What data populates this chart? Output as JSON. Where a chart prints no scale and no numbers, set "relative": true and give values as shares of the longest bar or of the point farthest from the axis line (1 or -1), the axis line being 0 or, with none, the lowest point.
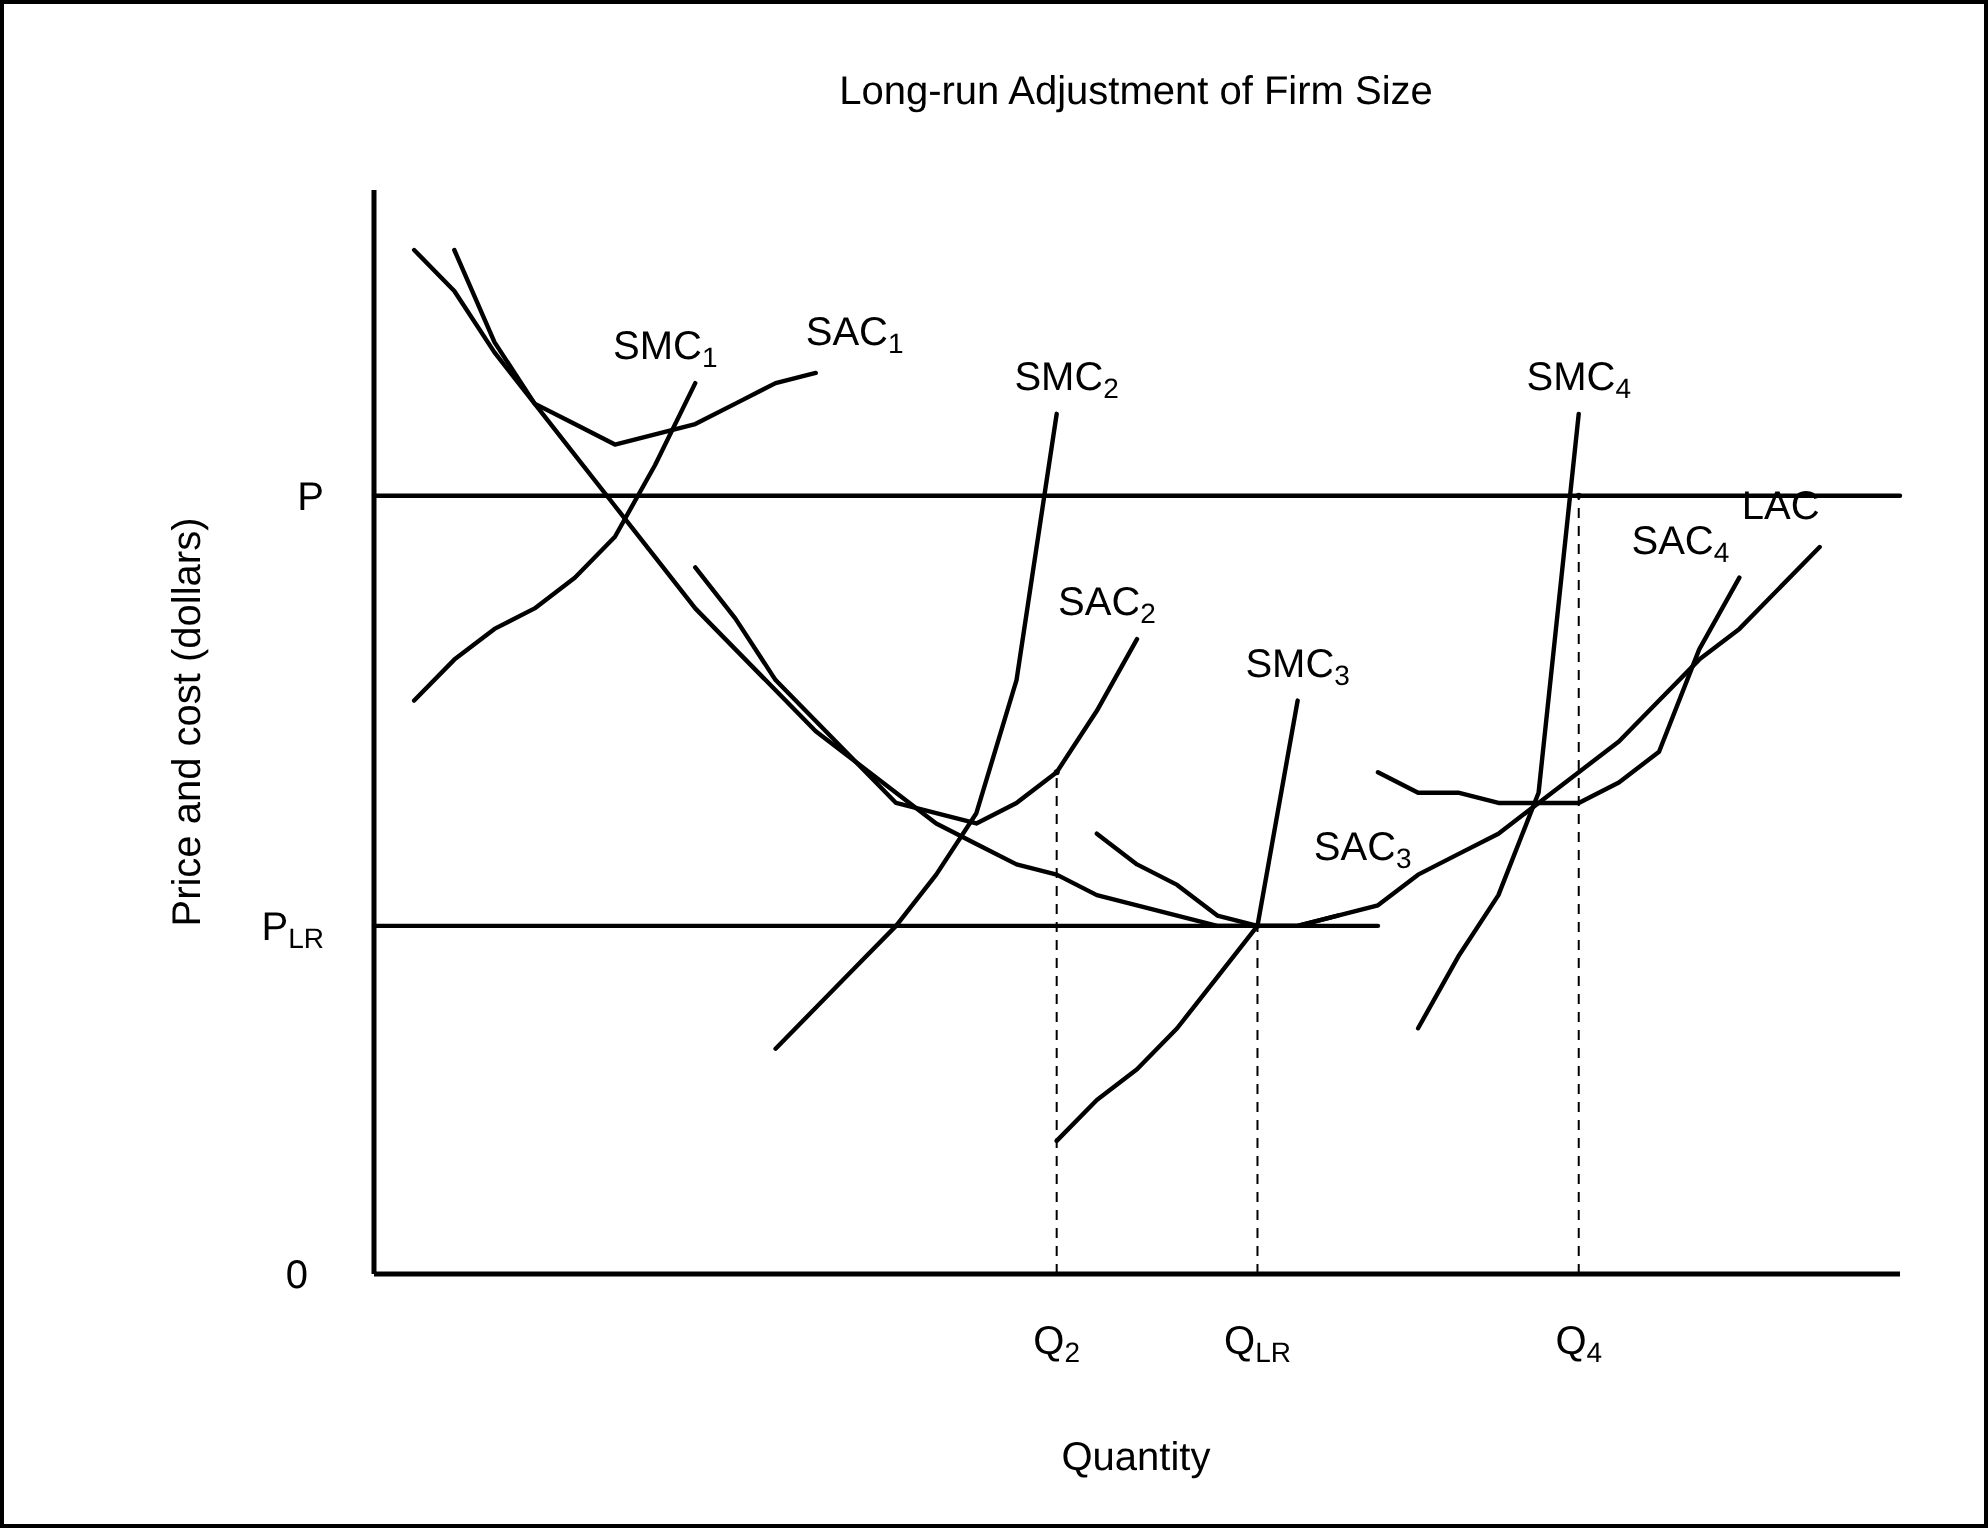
{
  "chart_data": {
    "type": "line",
    "title": "Long-run Adjustment of Firm Size",
    "xlabel": "Quantity",
    "ylabel": "Price and cost (dollars)",
    "relative": true,
    "legend": false,
    "categories": [
      null,
      null,
      null,
      null,
      null,
      null,
      null,
      null,
      null,
      null,
      null,
      null,
      null,
      null,
      null,
      null,
      null,
      "Q$_{2}$",
      null,
      null,
      null,
      null,
      "Q$_{LR}$",
      null,
      null,
      null,
      null,
      null,
      null,
      null,
      "Q$_{4}$",
      null,
      null,
      null,
      null,
      null,
      null,
      null,
      null
    ],
    "series": [
      {
        "name": "LAC",
        "color": "#000000",
        "values": [
          null,
          1.0,
          0.96,
          0.9,
          0.85,
          0.8,
          0.75,
          0.7,
          0.65,
          0.61,
          0.57,
          0.53,
          0.5,
          0.47,
          0.44,
          0.42,
          0.4,
          0.39,
          0.37,
          0.36,
          0.35,
          0.34,
          0.34,
          0.34,
          0.35,
          0.36,
          0.39,
          0.41,
          0.43,
          0.46,
          0.49,
          0.52,
          0.56,
          0.6,
          0.63,
          0.67,
          0.71,
          null,
          null
        ]
      },
      {
        "name": "SMC$_{1}$",
        "color": "#000000",
        "values": [
          null,
          0.56,
          0.6,
          0.63,
          0.65,
          0.68,
          0.72,
          0.79,
          0.87,
          null,
          null,
          null,
          null,
          null,
          null,
          null,
          null,
          null,
          null,
          null,
          null,
          null,
          null,
          null,
          null,
          null,
          null,
          null,
          null,
          null,
          null,
          null,
          null,
          null,
          null,
          null,
          null,
          null,
          null
        ]
      },
      {
        "name": "SAC$_{1}$",
        "color": "#000000",
        "values": [
          null,
          null,
          1.0,
          0.91,
          0.85,
          0.83,
          0.81,
          0.82,
          0.83,
          0.85,
          0.87,
          0.88,
          null,
          null,
          null,
          null,
          null,
          null,
          null,
          null,
          null,
          null,
          null,
          null,
          null,
          null,
          null,
          null,
          null,
          null,
          null,
          null,
          null,
          null,
          null,
          null,
          null,
          null,
          null
        ]
      },
      {
        "name": "SMC$_{2}$",
        "color": "#000000",
        "values": [
          null,
          null,
          null,
          null,
          null,
          null,
          null,
          null,
          null,
          null,
          0.22,
          0.26,
          0.3,
          0.34,
          0.39,
          0.45,
          0.58,
          0.84,
          null,
          null,
          null,
          null,
          null,
          null,
          null,
          null,
          null,
          null,
          null,
          null,
          null,
          null,
          null,
          null,
          null,
          null,
          null,
          null,
          null
        ]
      },
      {
        "name": "SAC$_{2}$",
        "color": "#000000",
        "values": [
          null,
          null,
          null,
          null,
          null,
          null,
          null,
          null,
          0.69,
          0.64,
          0.58,
          0.54,
          0.5,
          0.46,
          0.45,
          0.44,
          0.46,
          0.49,
          0.55,
          0.62,
          null,
          null,
          null,
          null,
          null,
          null,
          null,
          null,
          null,
          null,
          null,
          null,
          null,
          null,
          null,
          null,
          null,
          null,
          null
        ]
      },
      {
        "name": "SMC$_{3}$",
        "color": "#000000",
        "values": [
          null,
          null,
          null,
          null,
          null,
          null,
          null,
          null,
          null,
          null,
          null,
          null,
          null,
          null,
          null,
          null,
          null,
          0.13,
          0.17,
          0.2,
          0.24,
          0.29,
          0.34,
          0.56,
          null,
          null,
          null,
          null,
          null,
          null,
          null,
          null,
          null,
          null,
          null,
          null,
          null,
          null,
          null
        ]
      },
      {
        "name": "SAC$_{3}$",
        "color": "#000000",
        "values": [
          null,
          null,
          null,
          null,
          null,
          null,
          null,
          null,
          null,
          null,
          null,
          null,
          null,
          null,
          null,
          null,
          null,
          null,
          0.43,
          0.4,
          0.38,
          0.35,
          0.34,
          0.34,
          0.35,
          null,
          null,
          null,
          null,
          null,
          null,
          null,
          null,
          null,
          null,
          null,
          null,
          null,
          null
        ]
      },
      {
        "name": "SMC$_{4}$",
        "color": "#000000",
        "values": [
          null,
          null,
          null,
          null,
          null,
          null,
          null,
          null,
          null,
          null,
          null,
          null,
          null,
          null,
          null,
          null,
          null,
          null,
          null,
          null,
          null,
          null,
          null,
          null,
          null,
          null,
          0.24,
          0.31,
          0.37,
          0.47,
          0.84,
          null,
          null,
          null,
          null,
          null,
          null,
          null,
          null
        ]
      },
      {
        "name": "SAC$_{4}$",
        "color": "#000000",
        "values": [
          null,
          null,
          null,
          null,
          null,
          null,
          null,
          null,
          null,
          null,
          null,
          null,
          null,
          null,
          null,
          null,
          null,
          null,
          null,
          null,
          null,
          null,
          null,
          null,
          null,
          0.49,
          0.47,
          0.47,
          0.46,
          0.46,
          0.46,
          0.48,
          0.51,
          0.61,
          0.68,
          null,
          null,
          null,
          null
        ]
      },
      {
        "name": "P",
        "color": "#000000",
        "values": [
          0.76,
          0.76,
          0.76,
          0.76,
          0.76,
          0.76,
          0.76,
          0.76,
          0.76,
          0.76,
          0.76,
          0.76,
          0.76,
          0.76,
          0.76,
          0.76,
          0.76,
          0.76,
          0.76,
          0.76,
          0.76,
          0.76,
          0.76,
          0.76,
          0.76,
          0.76,
          0.76,
          0.76,
          0.76,
          0.76,
          0.76,
          0.76,
          0.76,
          0.76,
          0.76,
          0.76,
          0.76,
          0.76,
          0.76
        ]
      },
      {
        "name": "P$_{LR}$",
        "color": "#000000",
        "values": [
          0.34,
          0.34,
          0.34,
          0.34,
          0.34,
          0.34,
          0.34,
          0.34,
          0.34,
          0.34,
          0.34,
          0.34,
          0.34,
          0.34,
          0.34,
          0.34,
          0.34,
          0.34,
          0.34,
          0.34,
          0.34,
          0.34,
          0.34,
          0.34,
          0.34,
          0.34,
          null,
          null,
          null,
          null,
          null,
          null,
          null,
          null,
          null,
          null,
          null,
          null,
          null
        ]
      },
      {
        "type": "lollipop",
        "color": "#000000",
        "line_style": "dashed",
        "marker": "circle",
        "values": [
          null,
          null,
          null,
          null,
          null,
          null,
          null,
          null,
          null,
          null,
          null,
          null,
          null,
          null,
          null,
          null,
          null,
          0.49,
          null,
          null,
          null,
          null,
          0.34,
          null,
          null,
          null,
          null,
          null,
          null,
          null,
          0.76,
          null,
          null,
          null,
          null,
          null,
          null,
          null,
          null
        ]
      }
    ],
    "annotations": [
      "0"
    ]
  }
}
